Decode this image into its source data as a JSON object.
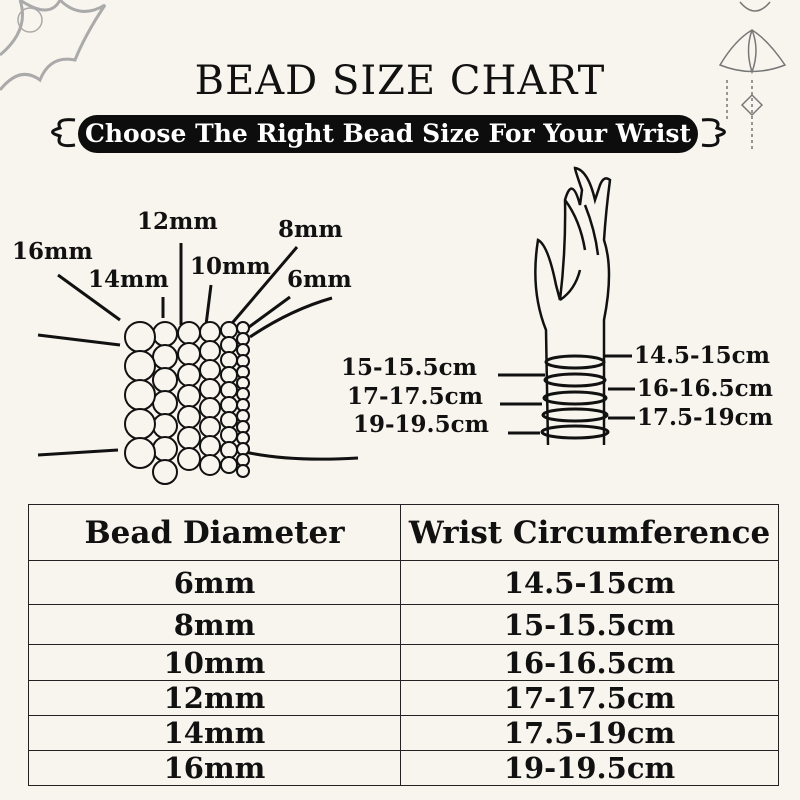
{
  "title": "BEAD SIZE CHART",
  "subtitle": "Choose The Right Bead Size For Your Wrist",
  "bead_labels": [
    "16mm",
    "14mm",
    "12mm",
    "10mm",
    "8mm",
    "6mm"
  ],
  "wrist_labels_left": [
    "15-15.5cm",
    "17-17.5cm",
    "19-19.5cm"
  ],
  "wrist_labels_right": [
    "14.5-15cm",
    "16-16.5cm",
    "17.5-19cm"
  ],
  "table": {
    "headers": [
      "Bead Diameter",
      "Wrist Circumference"
    ],
    "rows": [
      [
        "6mm",
        "14.5-15cm"
      ],
      [
        "8mm",
        "15-15.5cm"
      ],
      [
        "10mm",
        "16-16.5cm"
      ],
      [
        "12mm",
        "17-17.5cm"
      ],
      [
        "14mm",
        "17.5-19cm"
      ],
      [
        "16mm",
        "19-19.5cm"
      ]
    ]
  },
  "icons": [
    "lotus-ornament-icon",
    "mandala-ornament-icon",
    "scroll-flourish-icon"
  ]
}
